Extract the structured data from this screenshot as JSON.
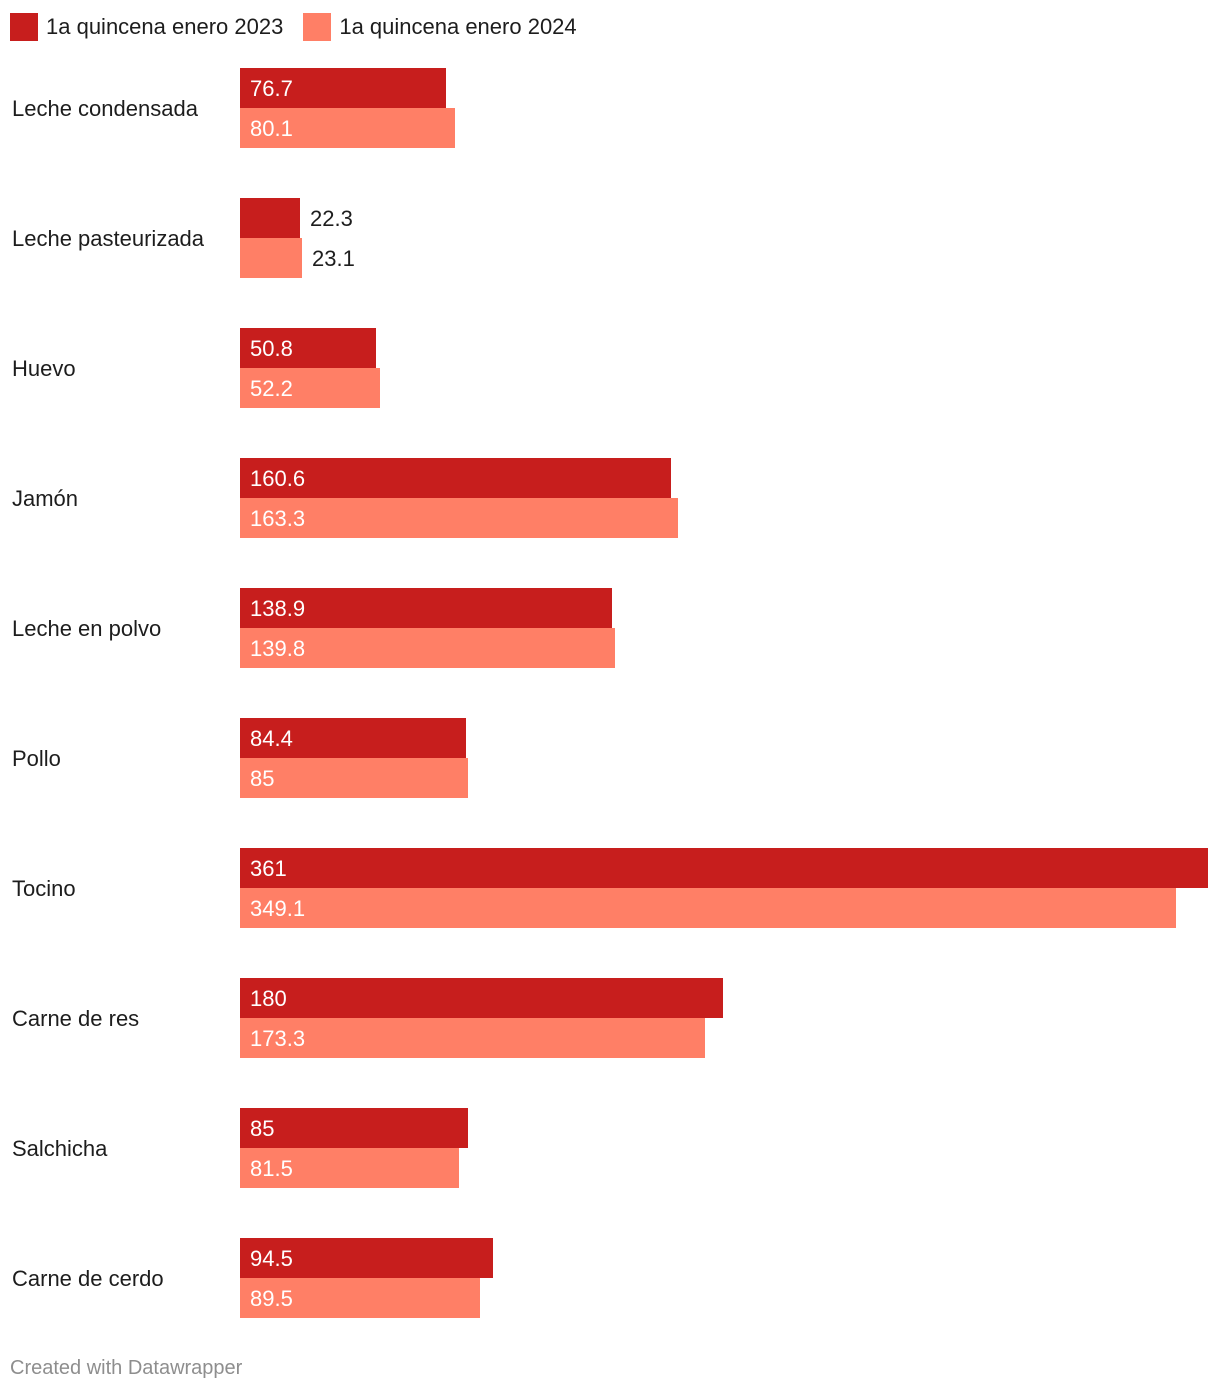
{
  "chart_data": {
    "type": "bar",
    "orientation": "horizontal",
    "categories": [
      "Leche condensada",
      "Leche pasteurizada",
      "Huevo",
      "Jamón",
      "Leche en polvo",
      "Pollo",
      "Tocino",
      "Carne de res",
      "Salchicha",
      "Carne de cerdo"
    ],
    "series": [
      {
        "name": "1a quincena enero 2023",
        "color": "#c71e1d",
        "values": [
          76.7,
          22.3,
          50.8,
          160.6,
          138.9,
          84.4,
          361,
          180,
          85,
          94.5
        ]
      },
      {
        "name": "1a quincena enero 2024",
        "color": "#ff7f66",
        "values": [
          80.1,
          23.1,
          52.2,
          163.3,
          139.8,
          85,
          349.1,
          173.3,
          81.5,
          89.5
        ]
      }
    ],
    "xlim": [
      0,
      361
    ],
    "grid": false,
    "legend_position": "top-left"
  },
  "footer": {
    "credit": "Created with Datawrapper"
  }
}
